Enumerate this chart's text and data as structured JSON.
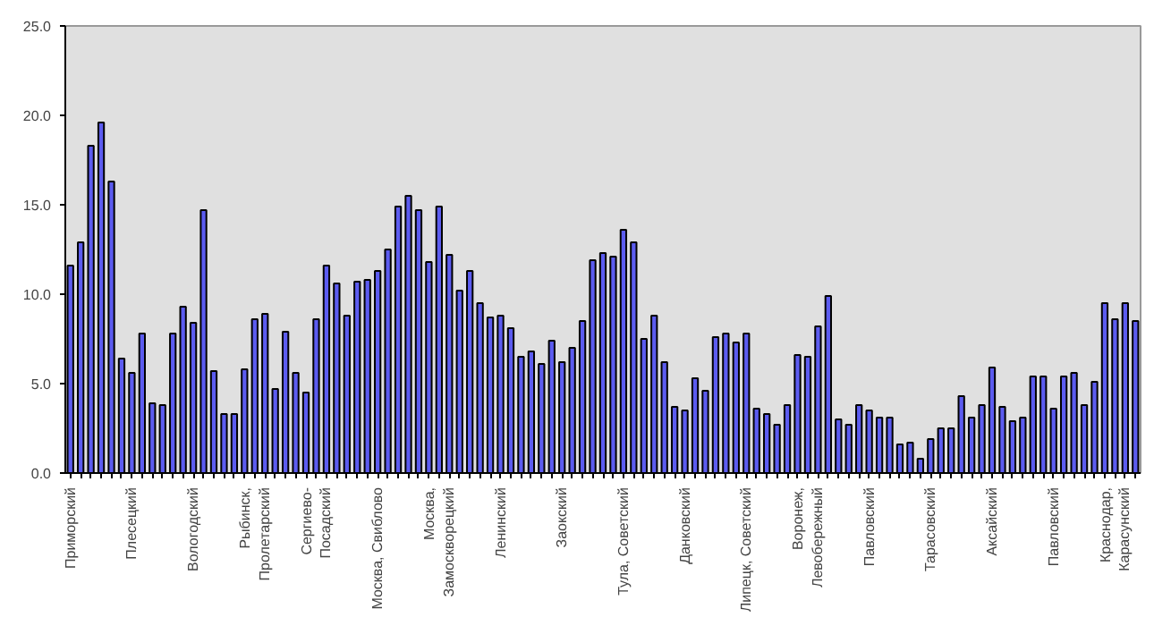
{
  "chart_data": {
    "type": "bar",
    "categories": [
      "Приморский",
      null,
      null,
      null,
      null,
      null,
      "Плесецкий",
      null,
      null,
      null,
      null,
      null,
      "Вологодский",
      null,
      null,
      null,
      null,
      null,
      "Рыбинск,\nПролетарский",
      null,
      null,
      null,
      null,
      null,
      "Сергиево-\nПосадский",
      null,
      null,
      null,
      null,
      null,
      "Москва, Свиблово",
      null,
      null,
      null,
      null,
      null,
      "Москва,\nЗамоскворецкий",
      null,
      null,
      null,
      null,
      null,
      "Ленинский",
      null,
      null,
      null,
      null,
      null,
      "Заокский",
      null,
      null,
      null,
      null,
      null,
      "Тула, Советский",
      null,
      null,
      null,
      null,
      null,
      "Данковский",
      null,
      null,
      null,
      null,
      null,
      "Липецк, Советский",
      null,
      null,
      null,
      null,
      null,
      "Воронеж,\nЛевобережный",
      null,
      null,
      null,
      null,
      null,
      "Павловский",
      null,
      null,
      null,
      null,
      null,
      "Тарасовский",
      null,
      null,
      null,
      null,
      null,
      "Аксайский",
      null,
      null,
      null,
      null,
      null,
      "Павловский",
      null,
      null,
      null,
      null,
      null,
      "Краснодар,\nКарасунский",
      null,
      null
    ],
    "values": [
      11.6,
      12.9,
      18.3,
      19.6,
      16.3,
      6.4,
      5.6,
      7.8,
      3.9,
      3.8,
      7.8,
      9.3,
      8.4,
      14.7,
      5.7,
      3.3,
      3.3,
      5.8,
      8.6,
      8.9,
      4.7,
      7.9,
      5.6,
      4.5,
      8.6,
      11.6,
      10.6,
      8.8,
      10.7,
      10.8,
      11.3,
      12.5,
      14.9,
      15.5,
      14.7,
      11.8,
      14.9,
      12.2,
      10.2,
      11.3,
      9.5,
      8.7,
      8.8,
      8.1,
      6.5,
      6.8,
      6.1,
      7.4,
      6.2,
      7.0,
      8.5,
      11.9,
      12.3,
      12.1,
      13.6,
      12.9,
      7.5,
      8.8,
      6.2,
      3.7,
      3.5,
      5.3,
      4.6,
      7.6,
      7.8,
      7.3,
      7.8,
      3.6,
      3.3,
      2.7,
      3.8,
      6.6,
      6.5,
      8.2,
      9.9,
      3.0,
      2.7,
      3.8,
      3.5,
      3.1,
      3.1,
      1.6,
      1.7,
      0.8,
      1.9,
      2.5,
      2.5,
      4.3,
      3.1,
      3.8,
      5.9,
      3.7,
      2.9,
      3.1,
      5.4,
      5.4,
      3.6,
      5.4,
      5.6,
      3.8,
      5.1,
      9.5,
      8.6,
      9.5,
      8.5
    ],
    "color": "#5c5cf0",
    "ylim": [
      0,
      25
    ],
    "yticks": [
      {
        "value": 0,
        "label": "0.0"
      },
      {
        "value": 5,
        "label": "5.0"
      },
      {
        "value": 10,
        "label": "10.0"
      },
      {
        "value": 15,
        "label": "15.0"
      },
      {
        "value": 20,
        "label": "20.0"
      },
      {
        "value": 25,
        "label": "25.0"
      }
    ],
    "grid": false
  }
}
